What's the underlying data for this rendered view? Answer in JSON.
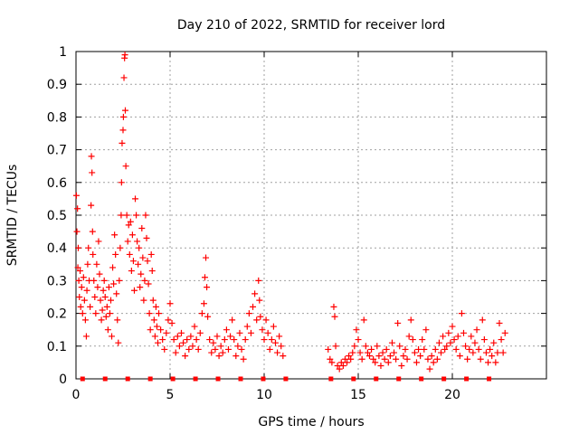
{
  "chart_data": {
    "type": "scatter",
    "title": "Day 210 of 2022, SRMTID for receiver lord",
    "xlabel": "GPS time / hours",
    "ylabel": "SRMTID / TECUs",
    "xlim": [
      0,
      25
    ],
    "ylim": [
      0,
      1
    ],
    "xticks": [
      0,
      5,
      10,
      15,
      20
    ],
    "yticks": [
      0,
      0.1,
      0.2,
      0.3,
      0.4,
      0.5,
      0.6,
      0.7,
      0.8,
      0.9,
      1
    ],
    "xtick_labels": [
      "0",
      "5",
      "10",
      "15",
      "20"
    ],
    "ytick_labels": [
      "0",
      "0.1",
      "0.2",
      "0.3",
      "0.4",
      "0.5",
      "0.6",
      "0.7",
      "0.8",
      "0.9",
      "1"
    ],
    "grid": true,
    "marker": "plus",
    "series": [
      {
        "name": "SRMTID",
        "color": "#ff0000",
        "points": [
          [
            0.02,
            0.56
          ],
          [
            0.05,
            0.45
          ],
          [
            0.08,
            0.52
          ],
          [
            0.1,
            0.34
          ],
          [
            0.12,
            0.4
          ],
          [
            0.15,
            0.3
          ],
          [
            0.18,
            0.25
          ],
          [
            0.22,
            0.33
          ],
          [
            0.25,
            0.22
          ],
          [
            0.3,
            0.28
          ],
          [
            0.35,
            0.2
          ],
          [
            0.4,
            0.31
          ],
          [
            0.45,
            0.24
          ],
          [
            0.5,
            0.18
          ],
          [
            0.55,
            0.13
          ],
          [
            0.58,
            0.27
          ],
          [
            0.62,
            0.35
          ],
          [
            0.66,
            0.4
          ],
          [
            0.7,
            0.3
          ],
          [
            0.75,
            0.22
          ],
          [
            0.8,
            0.53
          ],
          [
            0.82,
            0.68
          ],
          [
            0.85,
            0.63
          ],
          [
            0.88,
            0.45
          ],
          [
            0.9,
            0.38
          ],
          [
            0.95,
            0.3
          ],
          [
            1.0,
            0.25
          ],
          [
            1.05,
            0.2
          ],
          [
            1.1,
            0.35
          ],
          [
            1.15,
            0.28
          ],
          [
            1.2,
            0.42
          ],
          [
            1.25,
            0.32
          ],
          [
            1.3,
            0.24
          ],
          [
            1.35,
            0.18
          ],
          [
            1.4,
            0.21
          ],
          [
            1.45,
            0.27
          ],
          [
            1.5,
            0.3
          ],
          [
            1.55,
            0.25
          ],
          [
            1.6,
            0.19
          ],
          [
            1.65,
            0.22
          ],
          [
            1.7,
            0.15
          ],
          [
            1.75,
            0.28
          ],
          [
            1.8,
            0.2
          ],
          [
            1.85,
            0.24
          ],
          [
            1.9,
            0.13
          ],
          [
            1.95,
            0.34
          ],
          [
            2.0,
            0.29
          ],
          [
            2.05,
            0.44
          ],
          [
            2.1,
            0.38
          ],
          [
            2.15,
            0.26
          ],
          [
            2.2,
            0.18
          ],
          [
            2.25,
            0.11
          ],
          [
            2.3,
            0.3
          ],
          [
            2.35,
            0.4
          ],
          [
            2.4,
            0.5
          ],
          [
            2.42,
            0.6
          ],
          [
            2.45,
            0.72
          ],
          [
            2.5,
            0.76
          ],
          [
            2.52,
            0.8
          ],
          [
            2.55,
            0.92
          ],
          [
            2.58,
            0.98
          ],
          [
            2.6,
            0.99
          ],
          [
            2.62,
            0.82
          ],
          [
            2.65,
            0.65
          ],
          [
            2.7,
            0.5
          ],
          [
            2.75,
            0.42
          ],
          [
            2.8,
            0.47
          ],
          [
            2.85,
            0.38
          ],
          [
            2.9,
            0.48
          ],
          [
            2.95,
            0.33
          ],
          [
            3.0,
            0.44
          ],
          [
            3.05,
            0.36
          ],
          [
            3.1,
            0.27
          ],
          [
            3.15,
            0.55
          ],
          [
            3.2,
            0.5
          ],
          [
            3.25,
            0.42
          ],
          [
            3.3,
            0.35
          ],
          [
            3.35,
            0.4
          ],
          [
            3.4,
            0.28
          ],
          [
            3.45,
            0.32
          ],
          [
            3.5,
            0.46
          ],
          [
            3.55,
            0.37
          ],
          [
            3.6,
            0.24
          ],
          [
            3.65,
            0.3
          ],
          [
            3.7,
            0.5
          ],
          [
            3.75,
            0.43
          ],
          [
            3.8,
            0.36
          ],
          [
            3.85,
            0.29
          ],
          [
            3.9,
            0.2
          ],
          [
            3.95,
            0.15
          ],
          [
            4.0,
            0.38
          ],
          [
            4.05,
            0.33
          ],
          [
            4.1,
            0.24
          ],
          [
            4.15,
            0.18
          ],
          [
            4.2,
            0.13
          ],
          [
            4.25,
            0.22
          ],
          [
            4.3,
            0.16
          ],
          [
            4.35,
            0.11
          ],
          [
            4.4,
            0.2
          ],
          [
            4.5,
            0.15
          ],
          [
            4.6,
            0.12
          ],
          [
            4.7,
            0.09
          ],
          [
            4.8,
            0.14
          ],
          [
            4.9,
            0.18
          ],
          [
            5.0,
            0.23
          ],
          [
            5.1,
            0.17
          ],
          [
            5.2,
            0.12
          ],
          [
            5.3,
            0.08
          ],
          [
            5.4,
            0.13
          ],
          [
            5.5,
            0.1
          ],
          [
            5.6,
            0.14
          ],
          [
            5.7,
            0.11
          ],
          [
            5.8,
            0.07
          ],
          [
            5.9,
            0.12
          ],
          [
            6.0,
            0.09
          ],
          [
            6.1,
            0.13
          ],
          [
            6.2,
            0.1
          ],
          [
            6.3,
            0.16
          ],
          [
            6.4,
            0.12
          ],
          [
            6.5,
            0.09
          ],
          [
            6.6,
            0.14
          ],
          [
            6.7,
            0.2
          ],
          [
            6.8,
            0.23
          ],
          [
            6.85,
            0.31
          ],
          [
            6.9,
            0.37
          ],
          [
            6.95,
            0.28
          ],
          [
            7.0,
            0.19
          ],
          [
            7.1,
            0.12
          ],
          [
            7.2,
            0.08
          ],
          [
            7.3,
            0.11
          ],
          [
            7.4,
            0.09
          ],
          [
            7.5,
            0.13
          ],
          [
            7.6,
            0.07
          ],
          [
            7.7,
            0.1
          ],
          [
            7.8,
            0.08
          ],
          [
            7.9,
            0.12
          ],
          [
            8.0,
            0.15
          ],
          [
            8.1,
            0.09
          ],
          [
            8.2,
            0.13
          ],
          [
            8.3,
            0.18
          ],
          [
            8.4,
            0.12
          ],
          [
            8.5,
            0.07
          ],
          [
            8.6,
            0.1
          ],
          [
            8.7,
            0.14
          ],
          [
            8.8,
            0.09
          ],
          [
            8.9,
            0.06
          ],
          [
            9.0,
            0.12
          ],
          [
            9.1,
            0.16
          ],
          [
            9.2,
            0.2
          ],
          [
            9.3,
            0.14
          ],
          [
            9.4,
            0.22
          ],
          [
            9.5,
            0.26
          ],
          [
            9.6,
            0.18
          ],
          [
            9.7,
            0.3
          ],
          [
            9.75,
            0.24
          ],
          [
            9.8,
            0.19
          ],
          [
            9.9,
            0.15
          ],
          [
            10.0,
            0.12
          ],
          [
            10.1,
            0.18
          ],
          [
            10.2,
            0.14
          ],
          [
            10.3,
            0.09
          ],
          [
            10.4,
            0.12
          ],
          [
            10.5,
            0.16
          ],
          [
            10.6,
            0.11
          ],
          [
            10.7,
            0.08
          ],
          [
            10.8,
            0.13
          ],
          [
            10.9,
            0.1
          ],
          [
            11.0,
            0.07
          ],
          [
            13.4,
            0.09
          ],
          [
            13.5,
            0.06
          ],
          [
            13.6,
            0.05
          ],
          [
            13.7,
            0.22
          ],
          [
            13.75,
            0.19
          ],
          [
            13.8,
            0.1
          ],
          [
            13.9,
            0.04
          ],
          [
            14.0,
            0.03
          ],
          [
            14.1,
            0.05
          ],
          [
            14.2,
            0.04
          ],
          [
            14.3,
            0.06
          ],
          [
            14.4,
            0.05
          ],
          [
            14.5,
            0.07
          ],
          [
            14.6,
            0.06
          ],
          [
            14.7,
            0.08
          ],
          [
            14.8,
            0.1
          ],
          [
            14.9,
            0.15
          ],
          [
            15.0,
            0.12
          ],
          [
            15.1,
            0.08
          ],
          [
            15.2,
            0.06
          ],
          [
            15.3,
            0.18
          ],
          [
            15.4,
            0.1
          ],
          [
            15.5,
            0.08
          ],
          [
            15.6,
            0.07
          ],
          [
            15.7,
            0.09
          ],
          [
            15.8,
            0.06
          ],
          [
            15.9,
            0.05
          ],
          [
            16.0,
            0.1
          ],
          [
            16.1,
            0.07
          ],
          [
            16.2,
            0.04
          ],
          [
            16.3,
            0.08
          ],
          [
            16.4,
            0.06
          ],
          [
            16.5,
            0.09
          ],
          [
            16.6,
            0.05
          ],
          [
            16.7,
            0.07
          ],
          [
            16.8,
            0.11
          ],
          [
            16.9,
            0.08
          ],
          [
            17.0,
            0.06
          ],
          [
            17.1,
            0.17
          ],
          [
            17.2,
            0.1
          ],
          [
            17.3,
            0.04
          ],
          [
            17.4,
            0.07
          ],
          [
            17.5,
            0.09
          ],
          [
            17.6,
            0.06
          ],
          [
            17.7,
            0.13
          ],
          [
            17.8,
            0.18
          ],
          [
            17.9,
            0.12
          ],
          [
            18.0,
            0.08
          ],
          [
            18.1,
            0.05
          ],
          [
            18.2,
            0.09
          ],
          [
            18.3,
            0.07
          ],
          [
            18.4,
            0.12
          ],
          [
            18.5,
            0.09
          ],
          [
            18.6,
            0.15
          ],
          [
            18.7,
            0.06
          ],
          [
            18.8,
            0.03
          ],
          [
            18.9,
            0.07
          ],
          [
            19.0,
            0.05
          ],
          [
            19.1,
            0.09
          ],
          [
            19.2,
            0.06
          ],
          [
            19.3,
            0.11
          ],
          [
            19.4,
            0.08
          ],
          [
            19.5,
            0.13
          ],
          [
            19.6,
            0.09
          ],
          [
            19.7,
            0.1
          ],
          [
            19.8,
            0.14
          ],
          [
            19.9,
            0.11
          ],
          [
            20.0,
            0.16
          ],
          [
            20.1,
            0.12
          ],
          [
            20.2,
            0.09
          ],
          [
            20.3,
            0.13
          ],
          [
            20.4,
            0.07
          ],
          [
            20.5,
            0.2
          ],
          [
            20.6,
            0.14
          ],
          [
            20.7,
            0.1
          ],
          [
            20.8,
            0.06
          ],
          [
            20.9,
            0.09
          ],
          [
            21.0,
            0.13
          ],
          [
            21.1,
            0.08
          ],
          [
            21.2,
            0.11
          ],
          [
            21.3,
            0.15
          ],
          [
            21.4,
            0.09
          ],
          [
            21.5,
            0.06
          ],
          [
            21.6,
            0.18
          ],
          [
            21.7,
            0.12
          ],
          [
            21.8,
            0.08
          ],
          [
            21.9,
            0.05
          ],
          [
            22.0,
            0.09
          ],
          [
            22.1,
            0.07
          ],
          [
            22.2,
            0.11
          ],
          [
            22.3,
            0.05
          ],
          [
            22.4,
            0.08
          ],
          [
            22.5,
            0.17
          ],
          [
            22.6,
            0.12
          ],
          [
            22.7,
            0.08
          ],
          [
            22.8,
            0.14
          ]
        ]
      },
      {
        "name": "baseline markers",
        "color": "#ff0000",
        "marker": "square",
        "points": [
          [
            0.35,
            0
          ],
          [
            1.55,
            0
          ],
          [
            2.75,
            0
          ],
          [
            3.95,
            0
          ],
          [
            5.15,
            0
          ],
          [
            6.35,
            0
          ],
          [
            7.55,
            0
          ],
          [
            8.75,
            0
          ],
          [
            9.95,
            0
          ],
          [
            11.15,
            0
          ],
          [
            13.55,
            0
          ],
          [
            14.75,
            0
          ],
          [
            15.95,
            0
          ],
          [
            17.15,
            0
          ],
          [
            18.35,
            0
          ],
          [
            19.55,
            0
          ],
          [
            20.75,
            0
          ],
          [
            21.95,
            0
          ]
        ]
      }
    ]
  }
}
